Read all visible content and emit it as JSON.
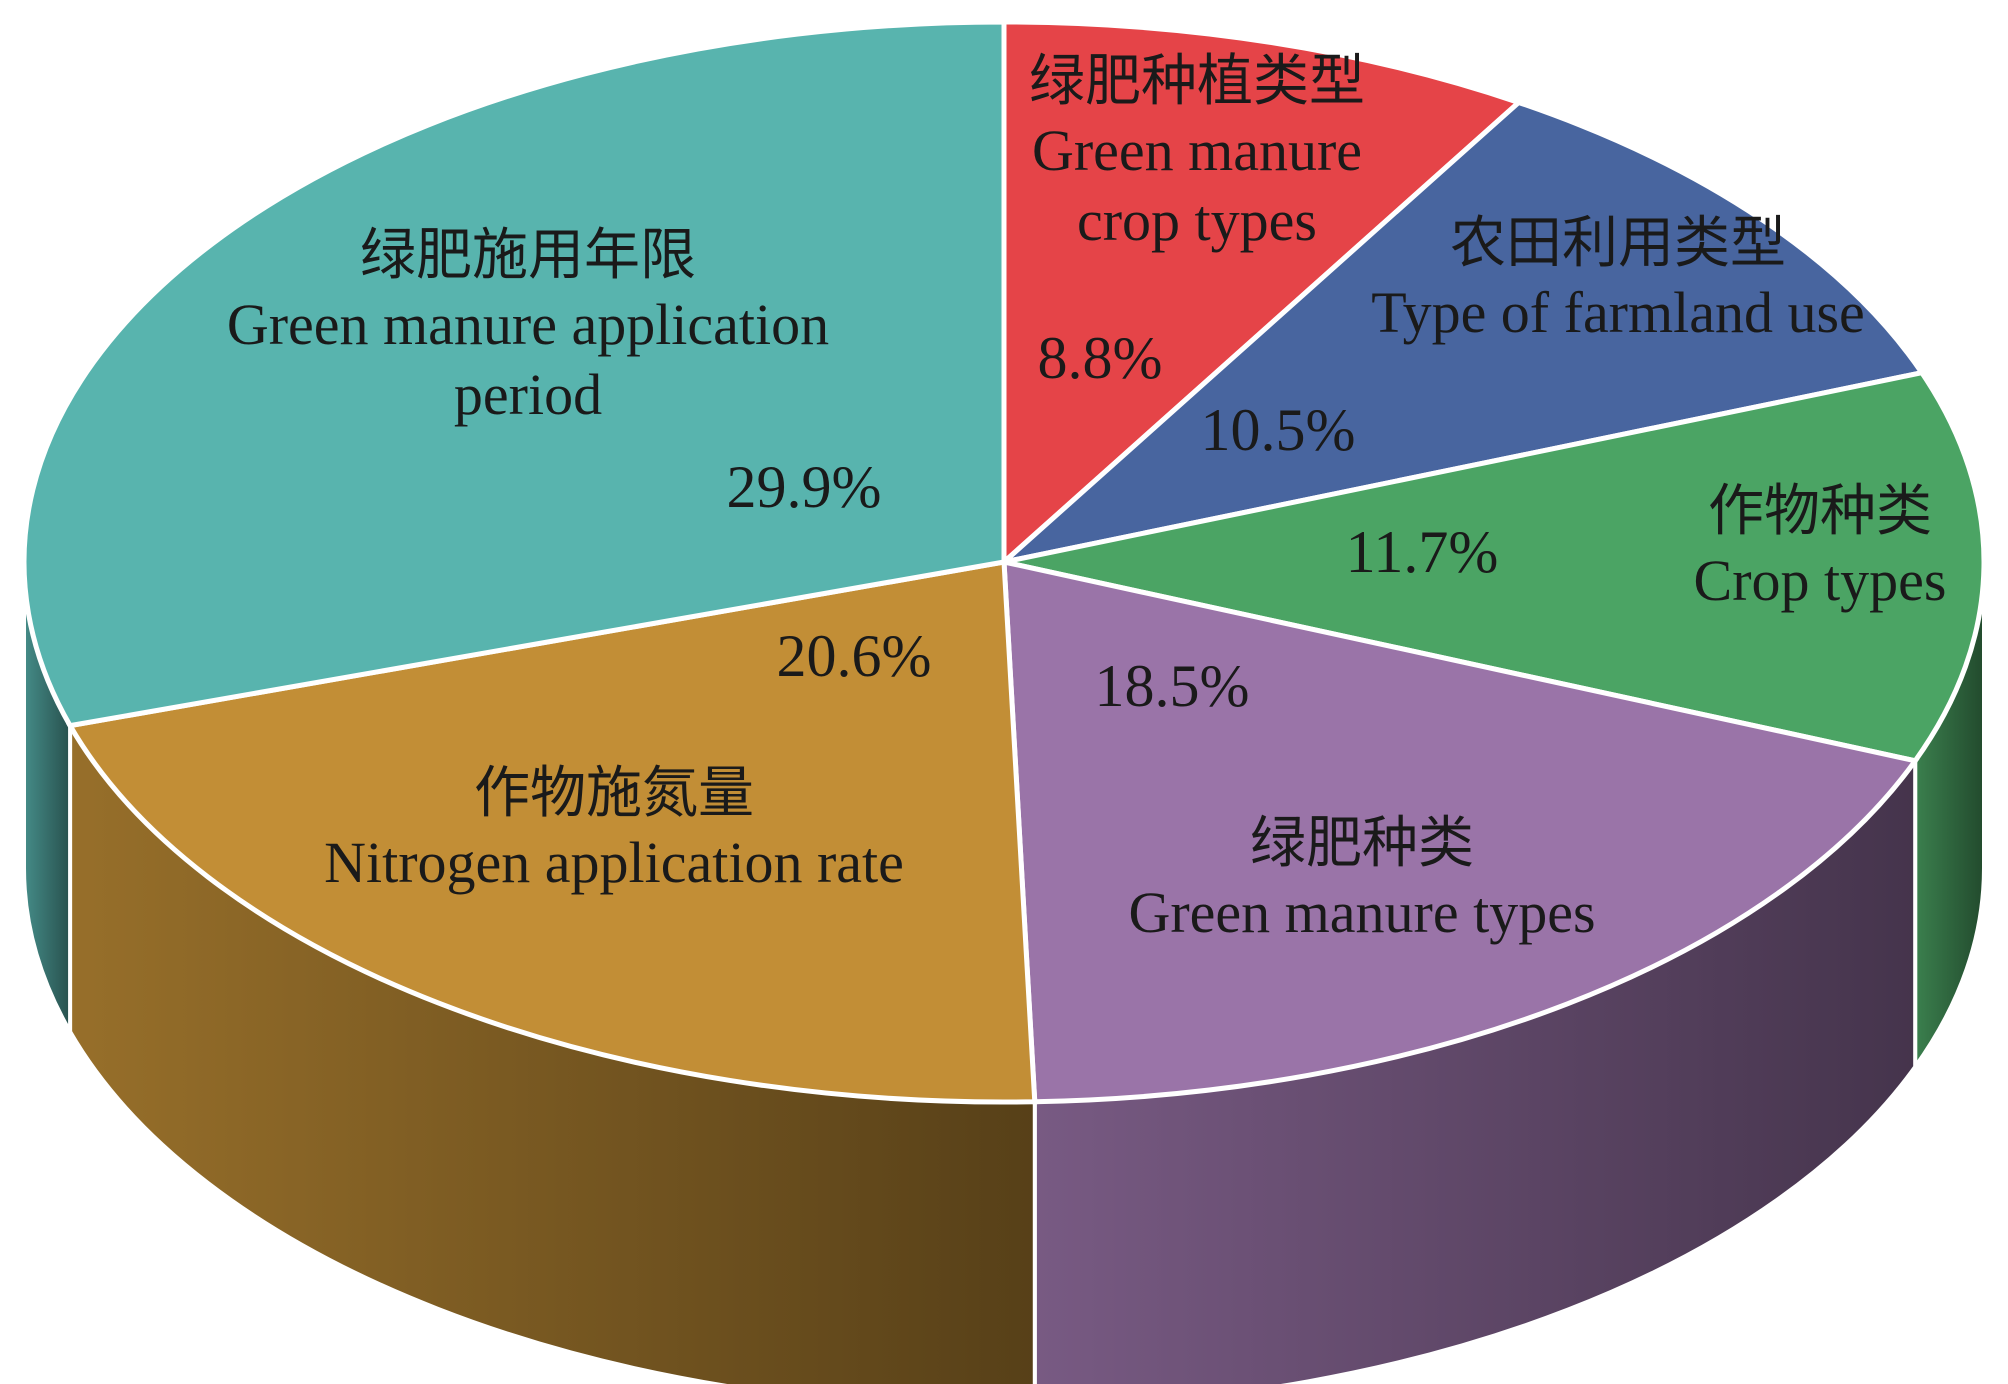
{
  "chart_data": {
    "type": "pie",
    "slices": [
      {
        "zh": "绿肥种植类型",
        "en": [
          "Green manure",
          "crop types"
        ],
        "value": 8.8,
        "label": "8.8%",
        "color": "#e54448"
      },
      {
        "zh": "农田利用类型",
        "en": [
          "Type of farmland use"
        ],
        "value": 10.5,
        "label": "10.5%",
        "color": "#48659f"
      },
      {
        "zh": "作物种类",
        "en": [
          "Crop types"
        ],
        "value": 11.7,
        "label": "11.7%",
        "color": "#4ba464"
      },
      {
        "zh": "绿肥种类",
        "en": [
          "Green manure types"
        ],
        "value": 18.5,
        "label": "18.5%",
        "color": "#9a74a8"
      },
      {
        "zh": "作物施氮量",
        "en": [
          "Nitrogen application rate"
        ],
        "value": 20.6,
        "label": "20.6%",
        "color": "#c28e36"
      },
      {
        "zh": "绿肥施用年限",
        "en": [
          "Green manure application",
          "period"
        ],
        "value": 29.9,
        "label": "29.9%",
        "color": "#58b4ae"
      }
    ],
    "style": "3d"
  }
}
